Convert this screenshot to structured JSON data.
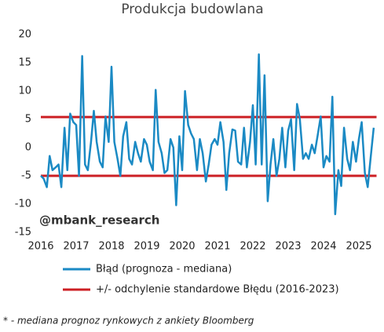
{
  "chart_data": {
    "type": "line",
    "title": "Produkcja budowlana",
    "annotation": "@mbank_research",
    "footnote": "* - mediana prognoz rynkowych z ankiety Bloomberg",
    "xlim": [
      2016,
      2025.5
    ],
    "xticks": [
      2016,
      2017,
      2018,
      2019,
      2020,
      2021,
      2022,
      2023,
      2024,
      2025
    ],
    "ylim": [
      -15,
      20
    ],
    "yticks": [
      -15,
      -10,
      -5,
      0,
      5,
      10,
      15,
      20
    ],
    "x": [
      2016,
      2016.08,
      2016.17,
      2016.25,
      2016.33,
      2016.42,
      2016.5,
      2016.58,
      2016.67,
      2016.75,
      2016.83,
      2016.92,
      2017,
      2017.08,
      2017.17,
      2017.25,
      2017.33,
      2017.42,
      2017.5,
      2017.58,
      2017.67,
      2017.75,
      2017.83,
      2017.92,
      2018,
      2018.08,
      2018.17,
      2018.25,
      2018.33,
      2018.42,
      2018.5,
      2018.58,
      2018.67,
      2018.75,
      2018.83,
      2018.92,
      2019,
      2019.08,
      2019.17,
      2019.25,
      2019.33,
      2019.42,
      2019.5,
      2019.58,
      2019.67,
      2019.75,
      2019.83,
      2019.92,
      2020,
      2020.08,
      2020.17,
      2020.25,
      2020.33,
      2020.42,
      2020.5,
      2020.58,
      2020.67,
      2020.75,
      2020.83,
      2020.92,
      2021,
      2021.08,
      2021.17,
      2021.25,
      2021.33,
      2021.42,
      2021.5,
      2021.58,
      2021.67,
      2021.75,
      2021.83,
      2021.92,
      2022,
      2022.08,
      2022.17,
      2022.25,
      2022.33,
      2022.42,
      2022.5,
      2022.58,
      2022.67,
      2022.75,
      2022.83,
      2022.92,
      2023,
      2023.08,
      2023.17,
      2023.25,
      2023.33,
      2023.42,
      2023.5,
      2023.58,
      2023.67,
      2023.75,
      2023.83,
      2023.92,
      2024,
      2024.08,
      2024.17,
      2024.25,
      2024.33,
      2024.42,
      2024.5,
      2024.58,
      2024.67,
      2024.75,
      2024.83,
      2024.92,
      2025,
      2025.08,
      2025.17,
      2025.25,
      2025.33,
      2025.42
    ],
    "series": [
      {
        "name": "Błąd (prognoza - mediana)",
        "color": "#1b8ac4",
        "values": [
          -5,
          -5.5,
          -7,
          -1.5,
          -4,
          -3.5,
          -3,
          -7,
          3.5,
          -4,
          6,
          4.5,
          4,
          -5,
          16.2,
          -3,
          -4,
          1,
          6.5,
          1,
          -2.5,
          -3.5,
          5.5,
          1,
          14.3,
          1,
          -2,
          -5,
          2,
          4.5,
          -2,
          -3,
          1,
          -1,
          -2.5,
          1.5,
          0.5,
          -2.5,
          -4,
          10.2,
          1,
          -1,
          -4.5,
          -4,
          1.5,
          0,
          -10.2,
          2,
          -4,
          10,
          4,
          2.5,
          1.5,
          -4,
          1.5,
          -1,
          -6,
          -3,
          0.5,
          1.5,
          0.5,
          4.5,
          1,
          -7.5,
          -1,
          3.2,
          3,
          -2.5,
          -3,
          3.5,
          -3.5,
          1,
          7.5,
          -3,
          16.5,
          -3,
          12.8,
          -9.5,
          -3,
          1.5,
          -5,
          -2,
          3.5,
          -3.5,
          3,
          5,
          -4,
          7.7,
          5,
          -2,
          -1,
          -2,
          0.5,
          -1,
          2,
          5.5,
          -3.5,
          -1.5,
          -2.5,
          9,
          -11.8,
          -4,
          -6.8,
          3.5,
          -2,
          -4,
          1,
          -2.5,
          1.5,
          4.5,
          -4.5,
          -7,
          -2,
          3.5
        ]
      }
    ],
    "reference_lines": {
      "name": "+/- odchylenie standardowe Błędu (2016-2023)",
      "color": "#cc1f24",
      "values": [
        5.4,
        -5
      ]
    }
  }
}
